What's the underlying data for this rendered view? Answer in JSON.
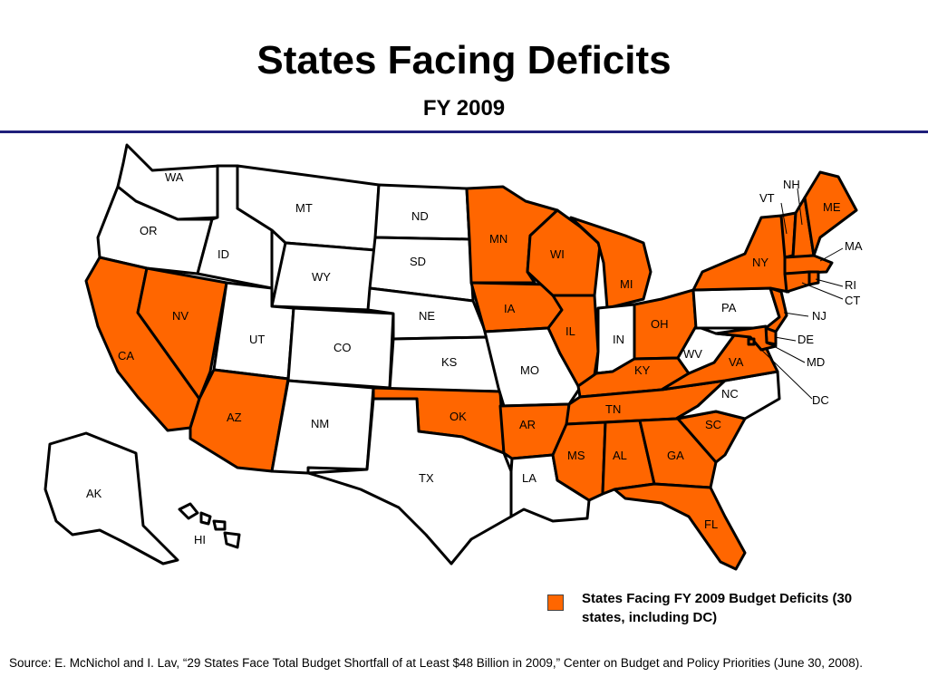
{
  "title": "States Facing Deficits",
  "subtitle": "FY 2009",
  "colors": {
    "deficit": "#ff6600",
    "no_deficit": "#ffffff",
    "rule": "#1f1f7a"
  },
  "legend": {
    "label": "States Facing FY 2009 Budget Deficits (30 states, including DC)"
  },
  "source": "Source: E. McNichol and I. Lav, “29 States Face Total Budget Shortfall of at Least $48 Billion in 2009,” Center on Budget and Policy Priorities (June 30, 2008).",
  "map": {
    "deficit_states": [
      "CA",
      "NV",
      "AZ",
      "OK",
      "AR",
      "MS",
      "AL",
      "GA",
      "FL",
      "SC",
      "TN",
      "KY",
      "VA",
      "OH",
      "MI",
      "IL",
      "WI",
      "MN",
      "IA",
      "NY",
      "NH",
      "VT",
      "ME",
      "MA",
      "RI",
      "CT",
      "NJ",
      "DE",
      "MD",
      "DC"
    ],
    "labels": {
      "WA": "WA",
      "OR": "OR",
      "CA": "CA",
      "NV": "NV",
      "ID": "ID",
      "MT": "MT",
      "WY": "WY",
      "UT": "UT",
      "AZ": "AZ",
      "CO": "CO",
      "NM": "NM",
      "ND": "ND",
      "SD": "SD",
      "NE": "NE",
      "KS": "KS",
      "OK": "OK",
      "TX": "TX",
      "MN": "MN",
      "IA": "IA",
      "MO": "MO",
      "AR": "AR",
      "LA": "LA",
      "WI": "WI",
      "IL": "IL",
      "MI": "MI",
      "IN": "IN",
      "OH": "OH",
      "KY": "KY",
      "TN": "TN",
      "MS": "MS",
      "AL": "AL",
      "GA": "GA",
      "FL": "FL",
      "SC": "SC",
      "NC": "NC",
      "VA": "VA",
      "WV": "WV",
      "PA": "PA",
      "NY": "NY",
      "VT": "VT",
      "NH": "NH",
      "ME": "ME",
      "MA": "MA",
      "RI": "RI",
      "CT": "CT",
      "NJ": "NJ",
      "DE": "DE",
      "MD": "MD",
      "DC": "DC",
      "AK": "AK",
      "HI": "HI"
    }
  }
}
